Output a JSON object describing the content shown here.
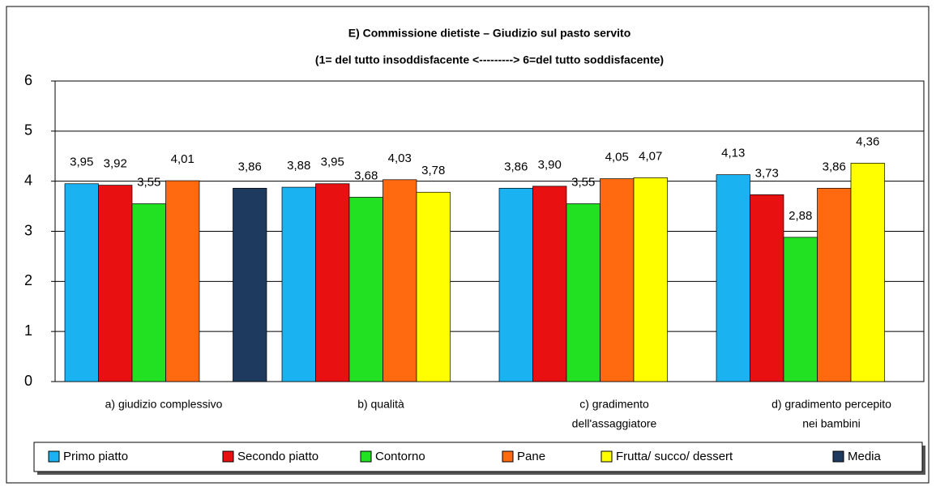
{
  "chart_data": {
    "type": "bar",
    "title": "E) Commissione dietiste – Giudizio sul pasto servito",
    "subtitle": "(1= del tutto  insoddisfacente  <---------> 6=del tutto soddisfacente)",
    "categories": [
      [
        "a) giudizio complessivo"
      ],
      [
        "b) qualità"
      ],
      [
        "c) gradimento",
        "dell'assaggiatore"
      ],
      [
        "d) gradimento percepito",
        "nei bambini"
      ]
    ],
    "series": [
      {
        "name": "Primo piatto",
        "color": "#1ab2f0",
        "values": [
          3.95,
          3.88,
          3.86,
          4.13
        ],
        "value_labels": [
          "3,95",
          "3,88",
          "3,86",
          "4,13"
        ]
      },
      {
        "name": "Secondo piatto",
        "color": "#e81010",
        "values": [
          3.92,
          3.95,
          3.9,
          3.73
        ],
        "value_labels": [
          "3,92",
          "3,95",
          "3,90",
          "3,73"
        ]
      },
      {
        "name": "Contorno",
        "color": "#22e022",
        "values": [
          3.55,
          3.68,
          3.55,
          2.88
        ],
        "value_labels": [
          "3,55",
          "3,68",
          "3,55",
          "2,88"
        ]
      },
      {
        "name": "Pane",
        "color": "#ff6a10",
        "values": [
          4.01,
          4.03,
          4.05,
          3.86
        ],
        "value_labels": [
          "4,01",
          "4,03",
          "4,05",
          "3,86"
        ]
      },
      {
        "name": "Frutta/ succo/ dessert",
        "color": "#ffff00",
        "values": [
          null,
          3.78,
          4.07,
          4.36
        ],
        "value_labels": [
          null,
          "3,78",
          "4,07",
          "4,36"
        ]
      },
      {
        "name": "Media",
        "color": "#1f3a5f",
        "values": [
          3.86,
          null,
          null,
          null
        ],
        "value_labels": [
          "3,86",
          null,
          null,
          null
        ]
      }
    ],
    "ylim": [
      0,
      6
    ],
    "yticks": [
      0,
      1,
      2,
      3,
      4,
      5,
      6
    ],
    "grid": true,
    "legend": "bottom"
  }
}
